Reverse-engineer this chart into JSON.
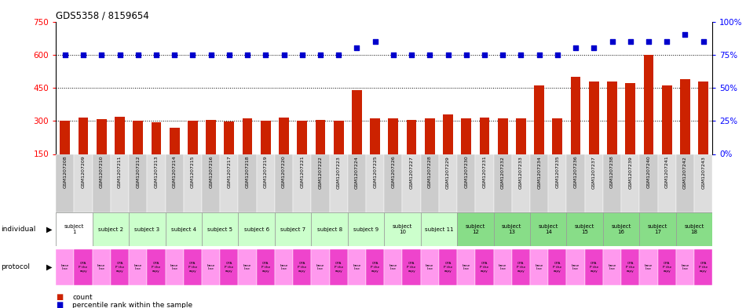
{
  "title": "GDS5358 / 8159654",
  "gsm_labels": [
    "GSM1207208",
    "GSM1207209",
    "GSM1207210",
    "GSM1207211",
    "GSM1207212",
    "GSM1207213",
    "GSM1207214",
    "GSM1207215",
    "GSM1207216",
    "GSM1207217",
    "GSM1207218",
    "GSM1207219",
    "GSM1207220",
    "GSM1207221",
    "GSM1207222",
    "GSM1207223",
    "GSM1207224",
    "GSM1207225",
    "GSM1207226",
    "GSM1207227",
    "GSM1207228",
    "GSM1207229",
    "GSM1207230",
    "GSM1207231",
    "GSM1207232",
    "GSM1207233",
    "GSM1207234",
    "GSM1207235",
    "GSM1207236",
    "GSM1207237",
    "GSM1207238",
    "GSM1207239",
    "GSM1207240",
    "GSM1207241",
    "GSM1207242",
    "GSM1207243"
  ],
  "bar_values": [
    300,
    315,
    308,
    320,
    300,
    295,
    270,
    300,
    305,
    298,
    310,
    302,
    315,
    300,
    305,
    300,
    440,
    310,
    310,
    305,
    310,
    330,
    310,
    315,
    310,
    310,
    460,
    310,
    500,
    480,
    480,
    470,
    600,
    460,
    490,
    480
  ],
  "dot_values": [
    75,
    75,
    75,
    75,
    75,
    75,
    75,
    75,
    75,
    75,
    75,
    75,
    75,
    75,
    75,
    75,
    80,
    85,
    75,
    75,
    75,
    75,
    75,
    75,
    75,
    75,
    75,
    75,
    80,
    80,
    85,
    85,
    85,
    85,
    90,
    85
  ],
  "bar_color": "#cc2200",
  "dot_color": "#0000cc",
  "ylim_left": [
    150,
    750
  ],
  "ylim_right": [
    0,
    100
  ],
  "yticks_left": [
    150,
    300,
    450,
    600,
    750
  ],
  "yticks_right": [
    0,
    25,
    50,
    75,
    100
  ],
  "ytick_labels_right": [
    "0%",
    "25%",
    "50%",
    "75%",
    "100%"
  ],
  "hlines": [
    300,
    450,
    600
  ],
  "individual_subjects": [
    {
      "text": "subject\n1",
      "start": 0,
      "end": 1,
      "color": "#ffffff"
    },
    {
      "text": "subject 2",
      "start": 2,
      "end": 3,
      "color": "#ccffcc"
    },
    {
      "text": "subject 3",
      "start": 4,
      "end": 5,
      "color": "#ccffcc"
    },
    {
      "text": "subject 4",
      "start": 6,
      "end": 7,
      "color": "#ccffcc"
    },
    {
      "text": "subject 5",
      "start": 8,
      "end": 9,
      "color": "#ccffcc"
    },
    {
      "text": "subject 6",
      "start": 10,
      "end": 11,
      "color": "#ccffcc"
    },
    {
      "text": "subject 7",
      "start": 12,
      "end": 13,
      "color": "#ccffcc"
    },
    {
      "text": "subject 8",
      "start": 14,
      "end": 15,
      "color": "#ccffcc"
    },
    {
      "text": "subject 9",
      "start": 16,
      "end": 17,
      "color": "#ccffcc"
    },
    {
      "text": "subject\n10",
      "start": 18,
      "end": 19,
      "color": "#ccffcc"
    },
    {
      "text": "subject 11",
      "start": 20,
      "end": 21,
      "color": "#ccffcc"
    },
    {
      "text": "subject\n12",
      "start": 22,
      "end": 23,
      "color": "#88dd88"
    },
    {
      "text": "subject\n13",
      "start": 24,
      "end": 25,
      "color": "#88dd88"
    },
    {
      "text": "subject\n14",
      "start": 26,
      "end": 27,
      "color": "#88dd88"
    },
    {
      "text": "subject\n15",
      "start": 28,
      "end": 29,
      "color": "#88dd88"
    },
    {
      "text": "subject\n16",
      "start": 30,
      "end": 31,
      "color": "#88dd88"
    },
    {
      "text": "subject\n17",
      "start": 32,
      "end": 33,
      "color": "#88dd88"
    },
    {
      "text": "subject\n18",
      "start": 34,
      "end": 35,
      "color": "#88dd88"
    }
  ],
  "protocol_items": [
    {
      "text": "base\nline",
      "color": "#ff99ee"
    },
    {
      "text": "CPA\nP the\nrapy",
      "color": "#ee44cc"
    },
    {
      "text": "base\nline",
      "color": "#ff99ee"
    },
    {
      "text": "CPA\nP the\nrapy",
      "color": "#ee44cc"
    },
    {
      "text": "base\nline",
      "color": "#ff99ee"
    },
    {
      "text": "CPA\nP the\nrapy",
      "color": "#ee44cc"
    },
    {
      "text": "base\nline",
      "color": "#ff99ee"
    },
    {
      "text": "CPA\nP the\nrapy",
      "color": "#ee44cc"
    },
    {
      "text": "base\nline",
      "color": "#ff99ee"
    },
    {
      "text": "CPA\nP the\nrapy",
      "color": "#ee44cc"
    },
    {
      "text": "base\nline",
      "color": "#ff99ee"
    },
    {
      "text": "CPA\nP the\nrapy",
      "color": "#ee44cc"
    },
    {
      "text": "base\nline",
      "color": "#ff99ee"
    },
    {
      "text": "CPA\nP the\nrapy",
      "color": "#ee44cc"
    },
    {
      "text": "base\nline",
      "color": "#ff99ee"
    },
    {
      "text": "CPA\nP the\nrapy",
      "color": "#ee44cc"
    },
    {
      "text": "base\nline",
      "color": "#ff99ee"
    },
    {
      "text": "CPA\nP the\nrapy",
      "color": "#ee44cc"
    },
    {
      "text": "base\nline",
      "color": "#ff99ee"
    },
    {
      "text": "CPA\nP the\nrapy",
      "color": "#ee44cc"
    },
    {
      "text": "base\nline",
      "color": "#ff99ee"
    },
    {
      "text": "CPA\nP the\nrapy",
      "color": "#ee44cc"
    },
    {
      "text": "base\nline",
      "color": "#ff99ee"
    },
    {
      "text": "CPA\nP the\nrapy",
      "color": "#ee44cc"
    },
    {
      "text": "base\nline",
      "color": "#ff99ee"
    },
    {
      "text": "CPA\nP the\nrapy",
      "color": "#ee44cc"
    },
    {
      "text": "base\nline",
      "color": "#ff99ee"
    },
    {
      "text": "CPA\nP the\nrapy",
      "color": "#ee44cc"
    },
    {
      "text": "base\nline",
      "color": "#ff99ee"
    },
    {
      "text": "CPA\nP the\nrapy",
      "color": "#ee44cc"
    },
    {
      "text": "base\nline",
      "color": "#ff99ee"
    },
    {
      "text": "CPA\nP the\nrapy",
      "color": "#ee44cc"
    },
    {
      "text": "base\nline",
      "color": "#ff99ee"
    },
    {
      "text": "CPA\nP the\nrapy",
      "color": "#ee44cc"
    },
    {
      "text": "base\nline",
      "color": "#ff99ee"
    },
    {
      "text": "CPA\nP the\nrapy",
      "color": "#ee44cc"
    }
  ],
  "legend_count_color": "#cc2200",
  "legend_pct_color": "#0000cc"
}
